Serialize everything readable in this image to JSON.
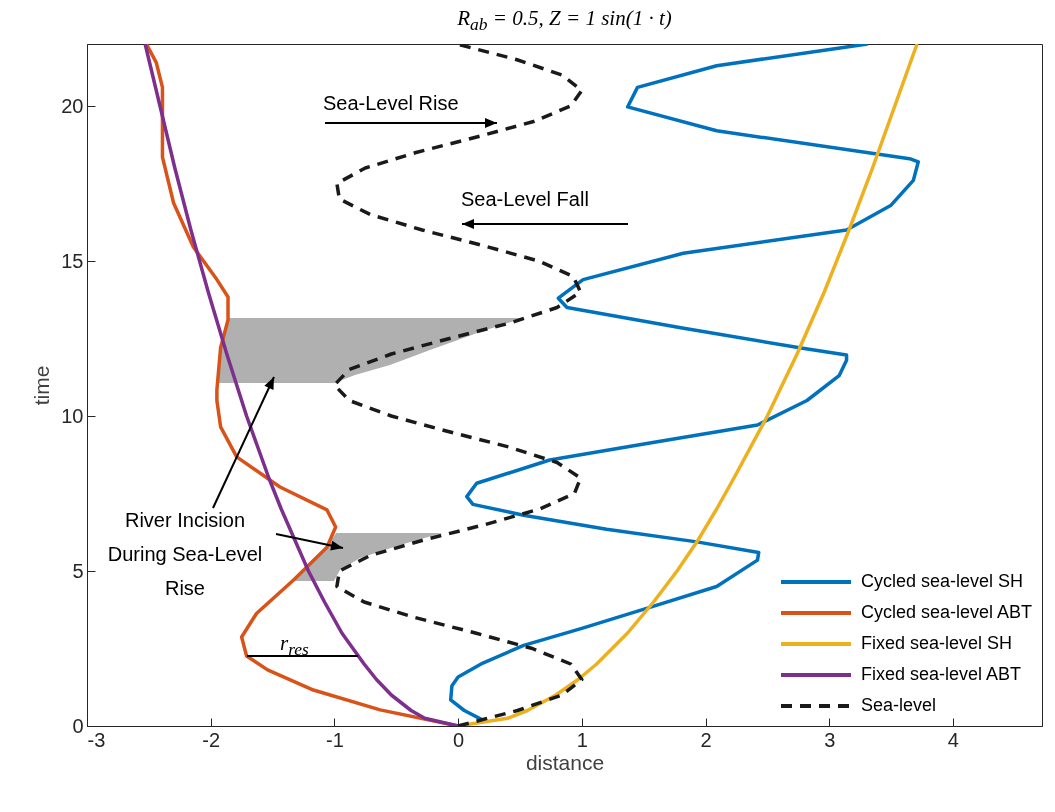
{
  "chart_data": {
    "type": "line",
    "title": "R$_{ab}$ = 0.5, Z = 1 sin(1 · t)",
    "xlabel": "distance",
    "ylabel": "time",
    "xlim": [
      -3,
      4.72
    ],
    "ylim": [
      0,
      22
    ],
    "xticks": [
      -3,
      -2,
      -1,
      0,
      1,
      2,
      3,
      4
    ],
    "yticks": [
      0,
      5,
      10,
      15,
      20
    ],
    "legend": "bottom right",
    "annotations": [
      "Sea-Level Rise",
      "Sea-Level Fall",
      "River Incision During Sea-Level Rise",
      "r$_{res}$"
    ],
    "series": [
      {
        "name": "Cycled sea-level SH",
        "color": "#0072bd",
        "x": [
          0.2,
          0.05,
          -0.06,
          -0.05,
          0.0,
          0.2,
          0.53,
          1.0,
          1.53,
          2.09,
          2.42,
          2.43,
          1.93,
          1.2,
          0.53,
          0.12,
          0.07,
          0.15,
          0.74,
          1.55,
          2.42,
          2.82,
          3.08,
          3.14,
          3.14,
          2.76,
          1.8,
          0.88,
          0.81,
          1.01,
          1.82,
          3.14,
          3.5,
          3.68,
          3.72,
          3.65,
          2.09,
          1.37,
          1.45,
          2.09,
          3.31
        ],
        "values": [
          0.19,
          0.5,
          0.84,
          1.3,
          1.58,
          2.03,
          2.6,
          3.15,
          3.8,
          4.5,
          5.35,
          5.6,
          5.94,
          6.35,
          6.8,
          7.15,
          7.4,
          7.83,
          8.58,
          9.13,
          9.71,
          10.5,
          11.3,
          11.8,
          11.97,
          12.2,
          12.85,
          13.5,
          13.8,
          14.4,
          15.25,
          16.0,
          16.8,
          17.6,
          18.2,
          18.3,
          19.2,
          19.97,
          20.6,
          21.3,
          22
        ]
      },
      {
        "name": "Cycled sea-level ABT",
        "color": "#d95319",
        "x": [
          0,
          -0.63,
          -1.17,
          -1.54,
          -1.71,
          -1.75,
          -1.63,
          -1.33,
          -1.06,
          -0.99,
          -1.06,
          -1.44,
          -1.79,
          -1.92,
          -1.95,
          -1.95,
          -1.92,
          -1.86,
          -1.86,
          -1.95,
          -2.14,
          -2.3,
          -2.39,
          -2.39,
          -2.39,
          -2.44,
          -2.52
        ],
        "values": [
          0,
          0.52,
          1.16,
          1.81,
          2.26,
          2.87,
          3.63,
          4.71,
          5.77,
          6.42,
          6.97,
          7.71,
          8.68,
          9.65,
          10.5,
          10.84,
          12.2,
          13.1,
          13.84,
          14.4,
          15.45,
          16.87,
          18.35,
          19.45,
          20.6,
          21.4,
          22
        ]
      },
      {
        "name": "Fixed sea-level SH",
        "color": "#edb120",
        "x": [
          0,
          0.4,
          0.56,
          0.79,
          0.97,
          1.12,
          1.37,
          1.58,
          1.77,
          1.94,
          2.09,
          2.23,
          2.5,
          2.74,
          2.96,
          3.16,
          3.35,
          3.53,
          3.71
        ],
        "values": [
          0,
          0.25,
          0.5,
          1,
          1.5,
          2,
          3,
          4,
          5,
          6,
          7,
          8,
          10,
          12,
          14,
          16,
          18,
          20,
          22
        ]
      },
      {
        "name": "Fixed sea-level ABT",
        "color": "#7e2f8e",
        "x": [
          0,
          -0.27,
          -0.38,
          -0.54,
          -0.66,
          -0.76,
          -0.94,
          -1.08,
          -1.21,
          -1.32,
          -1.43,
          -1.53,
          -1.71,
          -1.87,
          -2.02,
          -2.16,
          -2.29,
          -2.41,
          -2.53
        ],
        "values": [
          0,
          0.25,
          0.5,
          1,
          1.5,
          2,
          3,
          4,
          5,
          6,
          7,
          8,
          10,
          12,
          14,
          16,
          18,
          20,
          22
        ]
      },
      {
        "name": "Sea-level",
        "color": "#1a1a1a",
        "line_style": "dashed",
        "x": [
          0,
          0.48,
          0.84,
          1.0,
          0.91,
          0.6,
          0.14,
          -0.35,
          -0.76,
          -0.98,
          -0.96,
          -0.71,
          -0.28,
          0.22,
          0.66,
          0.94,
          0.99,
          0.8,
          0.41,
          -0.08,
          -0.54,
          -0.88,
          -1.0,
          -0.88,
          -0.54,
          -0.07,
          0.42,
          0.8,
          0.99,
          0.93,
          0.65,
          0.2,
          -0.29,
          -0.71,
          -0.96,
          -0.98,
          -0.75,
          -0.34,
          0.15,
          0.61,
          0.91,
          1.0,
          0.84,
          0.47,
          -0.01
        ],
        "values": [
          0,
          0.5,
          1,
          1.5,
          2,
          2.5,
          3,
          3.5,
          4,
          4.5,
          5,
          5.5,
          6,
          6.5,
          7,
          7.5,
          8,
          8.5,
          9,
          9.5,
          10,
          10.5,
          11,
          11.5,
          12,
          12.5,
          13,
          13.5,
          14,
          14.5,
          15,
          15.5,
          16,
          16.5,
          17,
          17.5,
          18,
          18.5,
          19,
          19.5,
          20,
          20.5,
          21,
          21.5,
          22
        ]
      }
    ]
  }
}
